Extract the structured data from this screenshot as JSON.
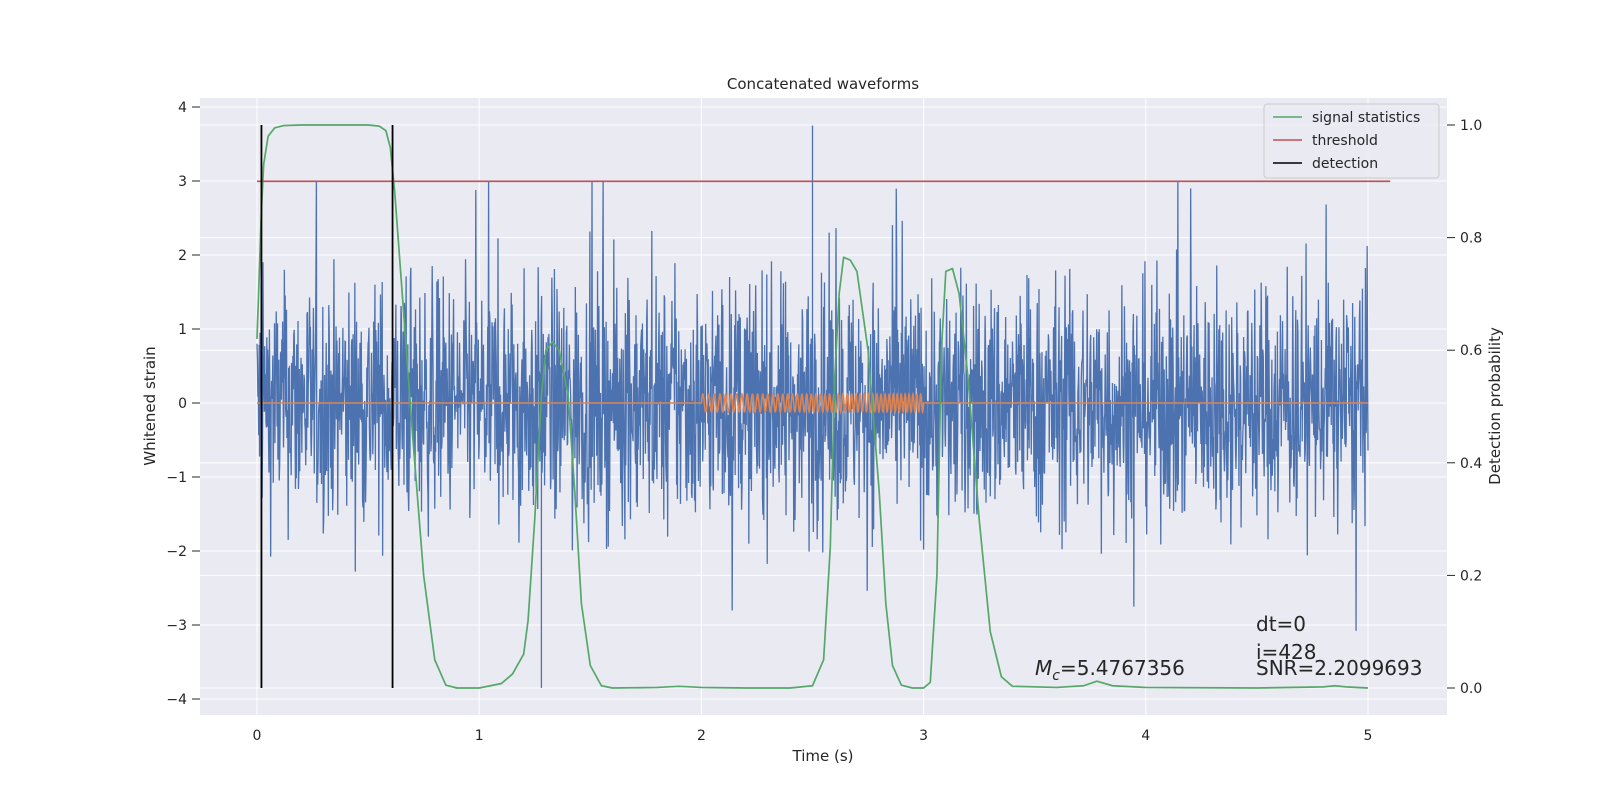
{
  "chart_data": {
    "type": "line",
    "title": "Concatenated waveforms",
    "xlabel": "Time (s)",
    "ylabel": "Whitened strain",
    "y2label": "Detection probability",
    "xlim": [
      -0.25,
      5.35
    ],
    "ylim": [
      -4.2,
      4.1
    ],
    "y2lim": [
      -0.035,
      1.035
    ],
    "xticks": [
      0,
      1,
      2,
      3,
      4,
      5
    ],
    "xtick_labels": [
      "0",
      "1",
      "2",
      "3",
      "4",
      "5"
    ],
    "yticks": [
      -4,
      -3,
      -2,
      -1,
      0,
      1,
      2,
      3,
      4
    ],
    "ytick_labels": [
      "−4",
      "−3",
      "−2",
      "−1",
      "0",
      "1",
      "2",
      "3",
      "4"
    ],
    "y2ticks": [
      0.0,
      0.2,
      0.4,
      0.6,
      0.8,
      1.0
    ],
    "y2tick_labels": [
      "0.0",
      "0.2",
      "0.4",
      "0.6",
      "0.8",
      "1.0"
    ],
    "grid": true,
    "legend_position": "top-right",
    "legend": [
      {
        "label": "signal statistics",
        "color": "#55a868"
      },
      {
        "label": "threshold",
        "color": "#c44e52"
      },
      {
        "label": "detection",
        "color": "#000000"
      }
    ],
    "colors": {
      "strain": "#4c72b0",
      "template": "#dd8452",
      "statistics": "#55a868",
      "threshold": "#c44e52",
      "detection": "#000000",
      "background": "#eaeaf2",
      "grid": "#ffffff"
    },
    "strain_series": {
      "t_range": [
        0,
        5
      ],
      "typical_amplitude": 0.8,
      "max": 3.75,
      "min": -3.85,
      "peaks": [
        {
          "t": 2.5,
          "y": 3.75
        },
        {
          "t": 1.28,
          "y": -3.85
        }
      ]
    },
    "template_series": {
      "baseline_t_range": [
        0,
        5
      ],
      "oscillation_t_range": [
        2.0,
        3.0
      ],
      "amplitude": 0.12
    },
    "signal_statistics": {
      "x": [
        0.0,
        0.02,
        0.03,
        0.05,
        0.08,
        0.12,
        0.2,
        0.3,
        0.4,
        0.5,
        0.55,
        0.58,
        0.6,
        0.62,
        0.65,
        0.7,
        0.75,
        0.8,
        0.85,
        0.9,
        1.0,
        1.1,
        1.15,
        1.2,
        1.22,
        1.25,
        1.28,
        1.3,
        1.33,
        1.36,
        1.4,
        1.43,
        1.46,
        1.5,
        1.55,
        1.6,
        1.8,
        1.9,
        2.0,
        2.2,
        2.4,
        2.5,
        2.55,
        2.58,
        2.6,
        2.62,
        2.64,
        2.67,
        2.7,
        2.75,
        2.8,
        2.83,
        2.86,
        2.9,
        2.95,
        3.0,
        3.03,
        3.06,
        3.08,
        3.1,
        3.13,
        3.16,
        3.2,
        3.25,
        3.3,
        3.35,
        3.4,
        3.6,
        3.72,
        3.78,
        3.85,
        4.0,
        4.5,
        4.8,
        4.85,
        4.9,
        5.0
      ],
      "y": [
        0.62,
        0.85,
        0.93,
        0.98,
        0.995,
        0.999,
        1.0,
        1.0,
        1.0,
        1.0,
        0.998,
        0.99,
        0.96,
        0.88,
        0.72,
        0.45,
        0.2,
        0.05,
        0.005,
        0.0,
        0.0,
        0.008,
        0.025,
        0.06,
        0.12,
        0.3,
        0.52,
        0.6,
        0.615,
        0.6,
        0.52,
        0.35,
        0.15,
        0.04,
        0.004,
        0.0,
        0.001,
        0.003,
        0.001,
        0.0,
        0.0,
        0.004,
        0.05,
        0.25,
        0.55,
        0.7,
        0.765,
        0.76,
        0.74,
        0.6,
        0.35,
        0.15,
        0.04,
        0.005,
        0.0,
        0.0,
        0.01,
        0.2,
        0.6,
        0.74,
        0.745,
        0.7,
        0.55,
        0.3,
        0.1,
        0.02,
        0.003,
        0.001,
        0.004,
        0.012,
        0.004,
        0.001,
        0.0,
        0.002,
        0.004,
        0.002,
        0.0
      ]
    },
    "threshold": {
      "y": 0.9,
      "x_range": [
        0.0,
        5.1
      ]
    },
    "detections": [
      0.02,
      0.61
    ],
    "annotations": {
      "mc_symbol": "M",
      "mc_sub": "c",
      "mc_value": "=5.4767356",
      "dt": "dt=0",
      "i": "i=428",
      "snr": "SNR=2.2099693"
    }
  }
}
